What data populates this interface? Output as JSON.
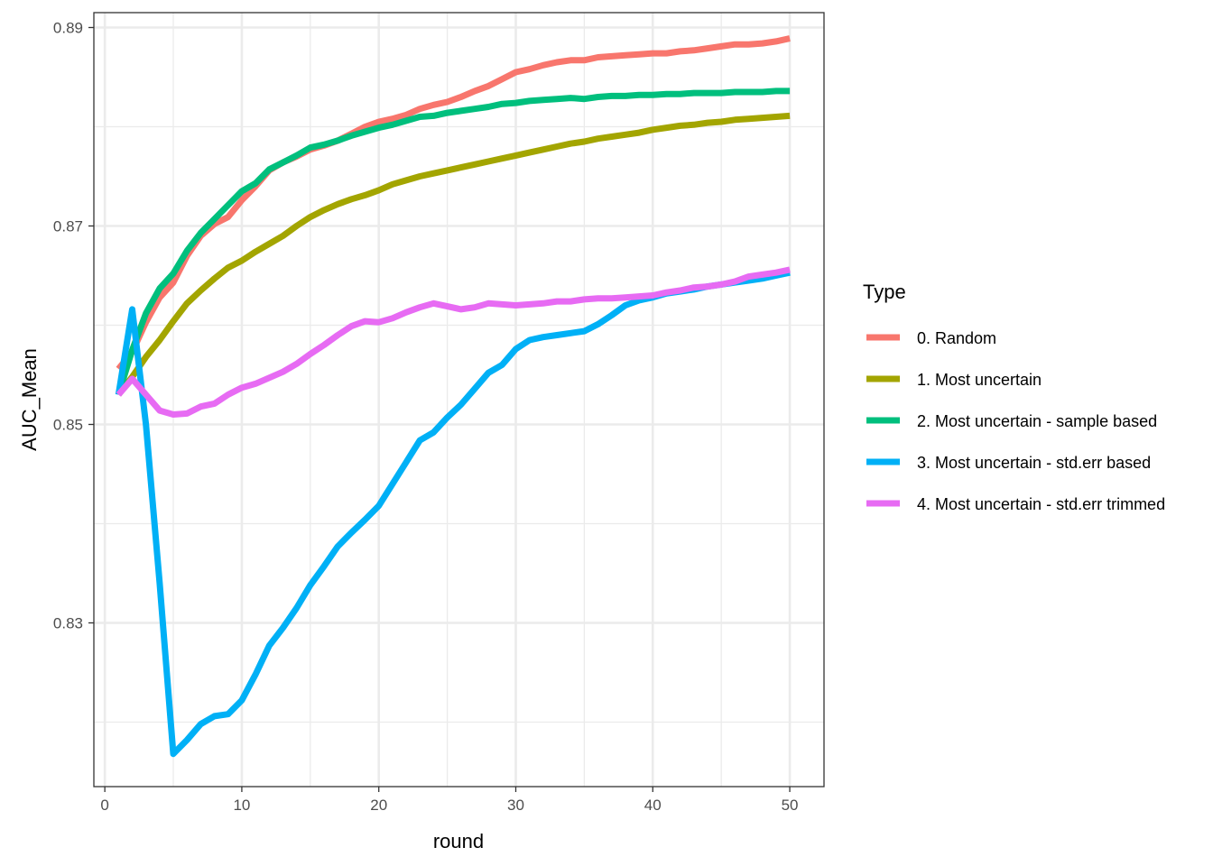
{
  "chart_data": {
    "type": "line",
    "xlabel": "round",
    "ylabel": "AUC_Mean",
    "xlim": [
      -0.8,
      52.5
    ],
    "ylim": [
      0.8135,
      0.8915
    ],
    "x_ticks": [
      0,
      10,
      20,
      30,
      40,
      50
    ],
    "y_ticks": [
      0.83,
      0.85,
      0.87,
      0.89
    ],
    "y_minor": [
      0.82,
      0.84,
      0.86,
      0.88
    ],
    "x_tick_labels": [
      "0",
      "10",
      "20",
      "30",
      "40",
      "50"
    ],
    "y_tick_labels": [
      "0.83",
      "0.85",
      "0.87",
      "0.89"
    ],
    "grid": true,
    "legend": {
      "title": "Type",
      "position": "right"
    },
    "series": [
      {
        "name": "0. Random",
        "color": "#F8766D",
        "x": [
          1,
          2,
          3,
          4,
          5,
          6,
          7,
          8,
          9,
          10,
          11,
          12,
          13,
          14,
          15,
          16,
          17,
          18,
          19,
          20,
          21,
          22,
          23,
          24,
          25,
          26,
          27,
          28,
          29,
          30,
          31,
          32,
          33,
          34,
          35,
          36,
          37,
          38,
          39,
          40,
          41,
          42,
          43,
          44,
          45,
          46,
          47,
          48,
          49,
          50
        ],
        "y": [
          0.8556,
          0.8573,
          0.8603,
          0.8628,
          0.8643,
          0.867,
          0.869,
          0.8702,
          0.8709,
          0.8726,
          0.874,
          0.8756,
          0.8764,
          0.877,
          0.8777,
          0.8781,
          0.8786,
          0.8793,
          0.88,
          0.8805,
          0.8808,
          0.8812,
          0.8818,
          0.8822,
          0.8825,
          0.883,
          0.8836,
          0.8841,
          0.8848,
          0.8855,
          0.8858,
          0.8862,
          0.8865,
          0.8867,
          0.8867,
          0.887,
          0.8871,
          0.8872,
          0.8873,
          0.8874,
          0.8874,
          0.8876,
          0.8877,
          0.8879,
          0.8881,
          0.8883,
          0.8883,
          0.8884,
          0.8886,
          0.8889
        ]
      },
      {
        "name": "1. Most uncertain",
        "color": "#A3A500",
        "x": [
          1,
          2,
          3,
          4,
          5,
          6,
          7,
          8,
          9,
          10,
          11,
          12,
          13,
          14,
          15,
          16,
          17,
          18,
          19,
          20,
          21,
          22,
          23,
          24,
          25,
          26,
          27,
          28,
          29,
          30,
          31,
          32,
          33,
          34,
          35,
          36,
          37,
          38,
          39,
          40,
          41,
          42,
          43,
          44,
          45,
          46,
          47,
          48,
          49,
          50
        ],
        "y": [
          0.853,
          0.8548,
          0.8568,
          0.8585,
          0.8604,
          0.8622,
          0.8635,
          0.8647,
          0.8658,
          0.8665,
          0.8674,
          0.8682,
          0.869,
          0.87,
          0.8709,
          0.8716,
          0.8722,
          0.8727,
          0.8731,
          0.8736,
          0.8742,
          0.8746,
          0.875,
          0.8753,
          0.8756,
          0.8759,
          0.8762,
          0.8765,
          0.8768,
          0.8771,
          0.8774,
          0.8777,
          0.878,
          0.8783,
          0.8785,
          0.8788,
          0.879,
          0.8792,
          0.8794,
          0.8797,
          0.8799,
          0.8801,
          0.8802,
          0.8804,
          0.8805,
          0.8807,
          0.8808,
          0.8809,
          0.881,
          0.8811
        ]
      },
      {
        "name": "2. Most uncertain - sample based",
        "color": "#00BF7D",
        "x": [
          1,
          2,
          3,
          4,
          5,
          6,
          7,
          8,
          9,
          10,
          11,
          12,
          13,
          14,
          15,
          16,
          17,
          18,
          19,
          20,
          21,
          22,
          23,
          24,
          25,
          26,
          27,
          28,
          29,
          30,
          31,
          32,
          33,
          34,
          35,
          36,
          37,
          38,
          39,
          40,
          41,
          42,
          43,
          44,
          45,
          46,
          47,
          48,
          49,
          50
        ],
        "y": [
          0.853,
          0.8575,
          0.8612,
          0.8637,
          0.8652,
          0.8675,
          0.8693,
          0.8707,
          0.8721,
          0.8735,
          0.8743,
          0.8757,
          0.8764,
          0.8771,
          0.8779,
          0.8782,
          0.8786,
          0.8791,
          0.8795,
          0.8799,
          0.8802,
          0.8806,
          0.881,
          0.8811,
          0.8814,
          0.8816,
          0.8818,
          0.882,
          0.8823,
          0.8824,
          0.8826,
          0.8827,
          0.8828,
          0.8829,
          0.8828,
          0.883,
          0.8831,
          0.8831,
          0.8832,
          0.8832,
          0.8833,
          0.8833,
          0.8834,
          0.8834,
          0.8834,
          0.8835,
          0.8835,
          0.8835,
          0.8836,
          0.8836
        ]
      },
      {
        "name": "3. Most uncertain - std.err based",
        "color": "#00B0F6",
        "x": [
          1,
          2,
          3,
          4,
          5,
          6,
          7,
          8,
          9,
          10,
          11,
          12,
          13,
          14,
          15,
          16,
          17,
          18,
          19,
          20,
          21,
          22,
          23,
          24,
          25,
          26,
          27,
          28,
          29,
          30,
          31,
          32,
          33,
          34,
          35,
          36,
          37,
          38,
          39,
          40,
          41,
          42,
          43,
          44,
          45,
          46,
          47,
          48,
          49,
          50
        ],
        "y": [
          0.853,
          0.8616,
          0.85,
          0.834,
          0.8168,
          0.8182,
          0.8198,
          0.8206,
          0.8208,
          0.8222,
          0.8248,
          0.8277,
          0.8295,
          0.8315,
          0.8338,
          0.8357,
          0.8377,
          0.8391,
          0.8404,
          0.8418,
          0.844,
          0.8462,
          0.8484,
          0.8492,
          0.8507,
          0.852,
          0.8536,
          0.8552,
          0.856,
          0.8576,
          0.8585,
          0.8588,
          0.859,
          0.8592,
          0.8594,
          0.8601,
          0.861,
          0.862,
          0.8625,
          0.8628,
          0.8632,
          0.8634,
          0.8636,
          0.8639,
          0.8641,
          0.8643,
          0.8645,
          0.8647,
          0.865,
          0.8653
        ]
      },
      {
        "name": "4. Most uncertain - std.err trimmed",
        "color": "#E76BF3",
        "x": [
          1,
          2,
          3,
          4,
          5,
          6,
          7,
          8,
          9,
          10,
          11,
          12,
          13,
          14,
          15,
          16,
          17,
          18,
          19,
          20,
          21,
          22,
          23,
          24,
          25,
          26,
          27,
          28,
          29,
          30,
          31,
          32,
          33,
          34,
          35,
          36,
          37,
          38,
          39,
          40,
          41,
          42,
          43,
          44,
          45,
          46,
          47,
          48,
          49,
          50
        ],
        "y": [
          0.853,
          0.8546,
          0.853,
          0.8514,
          0.851,
          0.8511,
          0.8518,
          0.8521,
          0.853,
          0.8537,
          0.8541,
          0.8547,
          0.8553,
          0.8561,
          0.8571,
          0.858,
          0.859,
          0.8599,
          0.8604,
          0.8603,
          0.8607,
          0.8613,
          0.8618,
          0.8622,
          0.8619,
          0.8616,
          0.8618,
          0.8622,
          0.8621,
          0.862,
          0.8621,
          0.8622,
          0.8624,
          0.8624,
          0.8626,
          0.8627,
          0.8627,
          0.8628,
          0.8629,
          0.863,
          0.8633,
          0.8635,
          0.8638,
          0.8639,
          0.8641,
          0.8644,
          0.8649,
          0.8651,
          0.8653,
          0.8656
        ]
      }
    ]
  }
}
